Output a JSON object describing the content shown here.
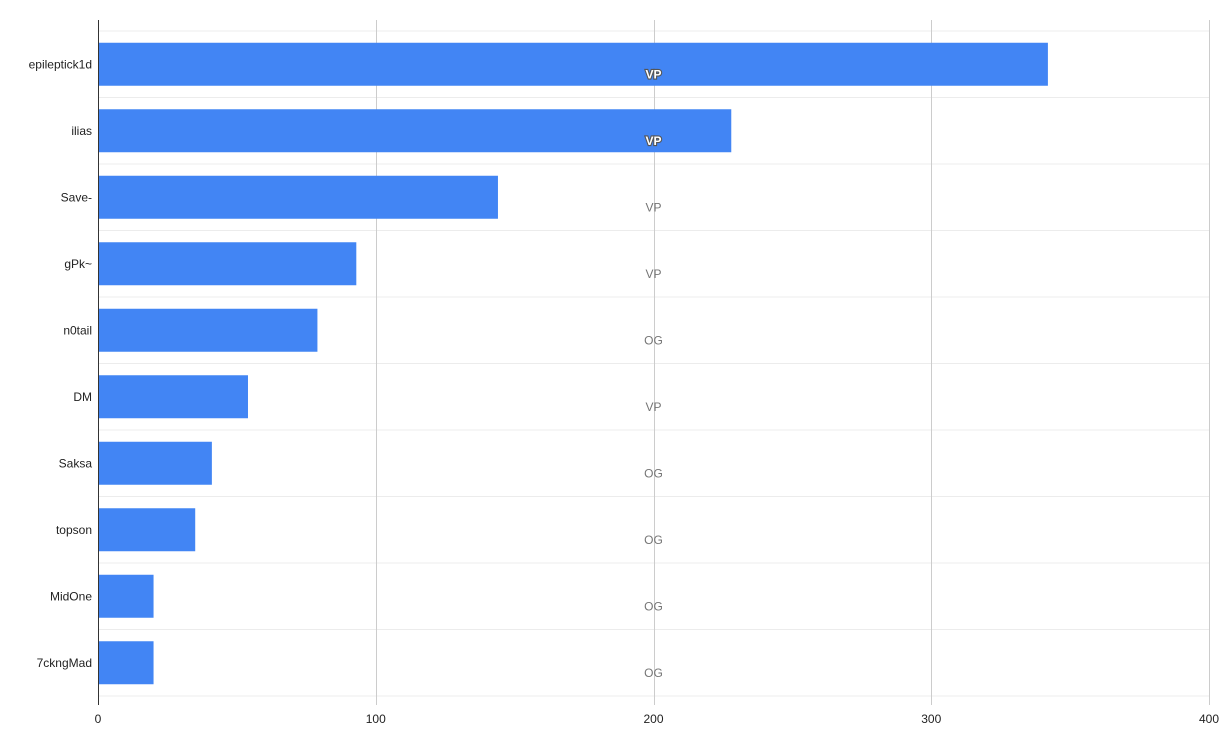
{
  "chart_data": {
    "type": "bar",
    "orientation": "horizontal",
    "categories": [
      "epileptick1d",
      "ilias",
      "Save-",
      "gPk~",
      "n0tail",
      "DM",
      "Saksa",
      "topson",
      "MidOne",
      "7ckngMad"
    ],
    "values": [
      342,
      228,
      144,
      93,
      79,
      54,
      41,
      35,
      20,
      20
    ],
    "annotations": [
      "VP",
      "VP",
      "VP",
      "VP",
      "OG",
      "VP",
      "OG",
      "OG",
      "OG",
      "OG"
    ],
    "annotation_x": 200,
    "xlim": [
      0,
      400
    ],
    "xticks": [
      0,
      100,
      200,
      300,
      400
    ],
    "xtick_labels": [
      "0",
      "100",
      "200",
      "300",
      "400"
    ],
    "title": "",
    "xlabel": "",
    "ylabel": "",
    "bar_color": "#4285f4",
    "grid": true,
    "legend": "none"
  }
}
